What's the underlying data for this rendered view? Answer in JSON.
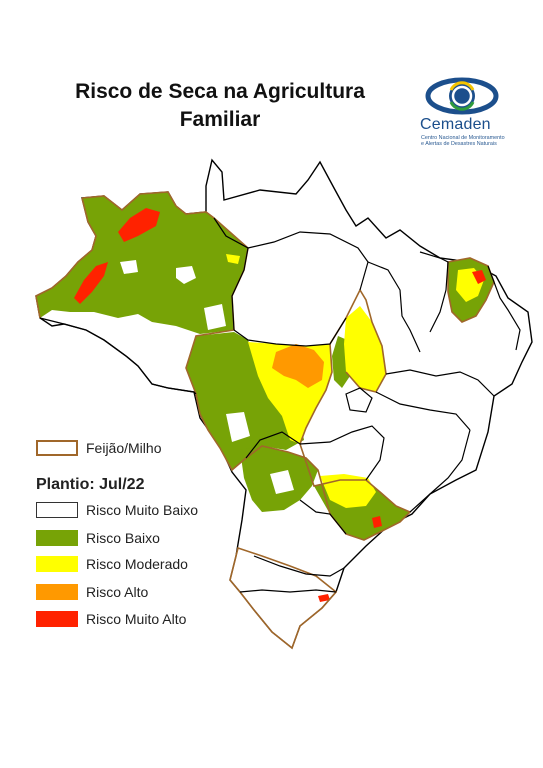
{
  "title_line1": "Risco de Seca na Agricultura",
  "title_line2": "Familiar",
  "logo": {
    "name": "Cemaden",
    "subtitle_line1": "Centro Nacional de Monitoramento",
    "subtitle_line2": "e Alertas de Desastres Naturais"
  },
  "legend": {
    "outline_label": "Feijão/Milho",
    "outline_color": "#a0672a",
    "heading": "Plantio: Jul/22",
    "classes": [
      {
        "label": "Risco Muito Baixo",
        "color": "#ffffff"
      },
      {
        "label": "Risco Baixo",
        "color": "#77a306"
      },
      {
        "label": "Risco Moderado",
        "color": "#ffff00"
      },
      {
        "label": "Risco Alto",
        "color": "#ff9900"
      },
      {
        "label": "Risco Muito Alto",
        "color": "#ff2200"
      }
    ]
  },
  "colors": {
    "border": "#000000",
    "outline": "#a0672a",
    "logo_blue": "#1c4f8c",
    "logo_yellow": "#f4c400",
    "logo_green": "#2e9b3c"
  }
}
